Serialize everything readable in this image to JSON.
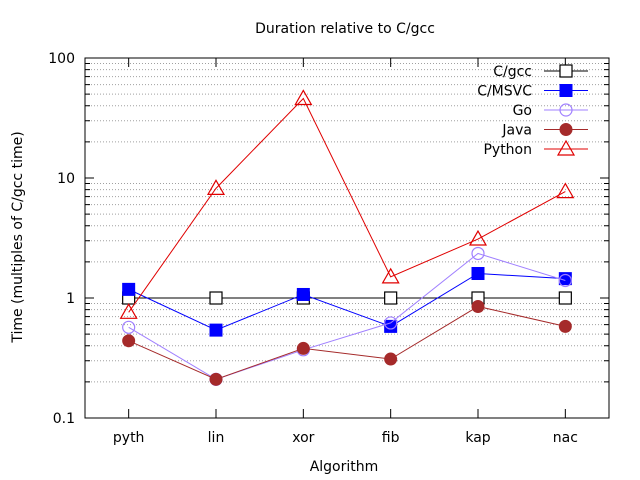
{
  "chart_data": {
    "type": "line",
    "title": "Duration relative to C/gcc",
    "xlabel": "Algorithm",
    "ylabel": "Time (multiples of C/gcc time)",
    "yscale": "log",
    "ylim": [
      0.1,
      100
    ],
    "yticks": [
      {
        "value": 0.1,
        "label": "0.1"
      },
      {
        "value": 1,
        "label": "1"
      },
      {
        "value": 10,
        "label": "10"
      },
      {
        "value": 100,
        "label": "100"
      }
    ],
    "grid": "dotted horizontal at log minor ticks",
    "legend_position": "top-right",
    "categories": [
      "pyth",
      "lin",
      "xor",
      "fib",
      "kap",
      "nac"
    ],
    "series": [
      {
        "name": "C/gcc",
        "color": "#000000",
        "marker": "square-open",
        "values": [
          1,
          1,
          1,
          1,
          1,
          1
        ]
      },
      {
        "name": "C/MSVC",
        "color": "#0000ff",
        "marker": "square-filled",
        "values": [
          1.18,
          0.54,
          1.07,
          0.58,
          1.6,
          1.45
        ]
      },
      {
        "name": "Go",
        "color": "#a080ff",
        "marker": "circle-open",
        "values": [
          0.57,
          0.21,
          0.37,
          0.62,
          2.35,
          1.4
        ]
      },
      {
        "name": "Java",
        "color": "#a52a2a",
        "marker": "circle-filled",
        "values": [
          0.44,
          0.21,
          0.38,
          0.31,
          0.85,
          0.58
        ]
      },
      {
        "name": "Python",
        "color": "#e00000",
        "marker": "triangle-open",
        "values": [
          0.76,
          8.2,
          46,
          1.5,
          3.1,
          7.7
        ]
      }
    ]
  }
}
